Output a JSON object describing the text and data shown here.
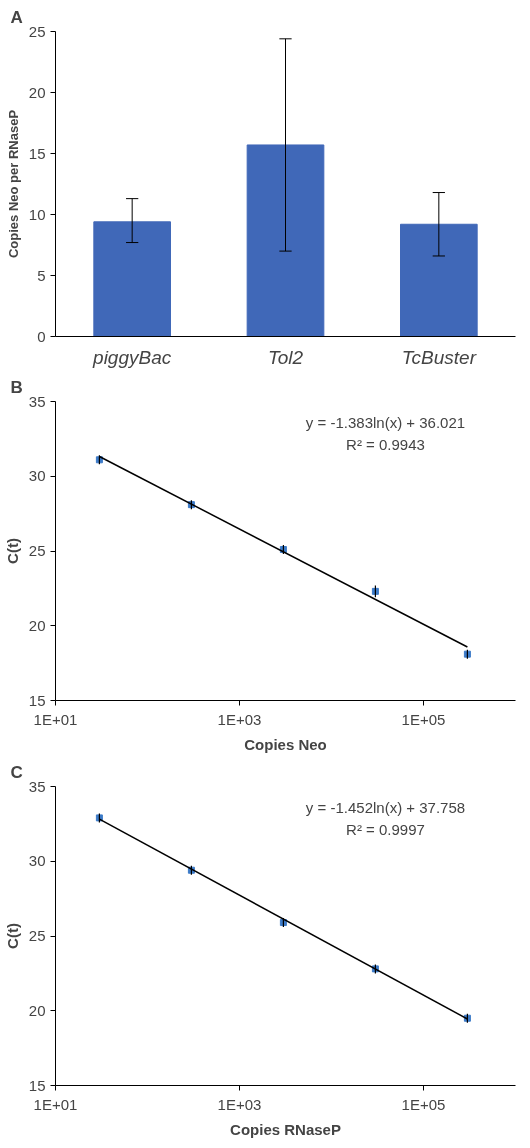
{
  "chart_data": [
    {
      "type": "bar",
      "title": "A",
      "ylabel": "Copies Neo per RNaseP",
      "categories": [
        "piggyBac",
        "Tol2",
        "TcBuster"
      ],
      "values": [
        9.4,
        15.7,
        9.2
      ],
      "color": "#4068b8",
      "errors": [
        [
          7.7,
          11.3
        ],
        [
          7.0,
          24.4
        ],
        [
          6.6,
          11.8
        ]
      ],
      "ylim": [
        0,
        25
      ],
      "yticks": [
        0,
        5,
        10,
        15,
        20,
        25
      ],
      "grid": false
    },
    {
      "type": "scatter",
      "title": "B",
      "xlabel": "Copies Neo",
      "ylabel": "C(t)",
      "log": "x",
      "grid": false,
      "xlim": [
        10,
        1000000
      ],
      "xticks": [
        {
          "value": 10,
          "label": "1E+01"
        },
        {
          "value": 1000,
          "label": "1E+03"
        },
        {
          "value": 100000,
          "label": "1E+05"
        }
      ],
      "ylim": [
        15,
        35
      ],
      "yticks": [
        15,
        20,
        25,
        30,
        35
      ],
      "annotations": [
        "y = -1.383ln(x) + 36.021",
        "R² = 0.9943"
      ],
      "series": [
        {
          "type": "scatter",
          "marker": "square",
          "color": "#3c7ac8",
          "x": [
            30,
            300,
            3000,
            30000,
            300000
          ],
          "values": [
            31.1,
            28.1,
            25.1,
            22.3,
            18.1
          ],
          "errors": [
            0.3,
            0.3,
            0.3,
            0.4,
            0.3
          ]
        },
        {
          "type": "line",
          "marker": "none",
          "color": "#000000",
          "x": [
            30,
            300000
          ],
          "values": [
            31.32,
            18.58
          ]
        }
      ]
    },
    {
      "type": "scatter",
      "title": "C",
      "xlabel": "Copies RNaseP",
      "ylabel": "C(t)",
      "log": "x",
      "grid": false,
      "xlim": [
        10,
        1000000
      ],
      "xticks": [
        {
          "value": 10,
          "label": "1E+01"
        },
        {
          "value": 1000,
          "label": "1E+03"
        },
        {
          "value": 100000,
          "label": "1E+05"
        }
      ],
      "ylim": [
        15,
        35
      ],
      "yticks": [
        15,
        20,
        25,
        30,
        35
      ],
      "annotations": [
        "y = -1.452ln(x) + 37.758",
        "R² = 0.9997"
      ],
      "series": [
        {
          "type": "scatter",
          "marker": "square",
          "color": "#3c7ac8",
          "x": [
            30,
            300,
            3000,
            30000,
            300000
          ],
          "values": [
            32.9,
            29.4,
            25.9,
            22.8,
            19.5
          ],
          "errors": [
            0.3,
            0.3,
            0.3,
            0.3,
            0.3
          ]
        },
        {
          "type": "line",
          "marker": "none",
          "color": "#000000",
          "x": [
            30,
            300000
          ],
          "values": [
            32.82,
            19.45
          ]
        }
      ]
    }
  ]
}
